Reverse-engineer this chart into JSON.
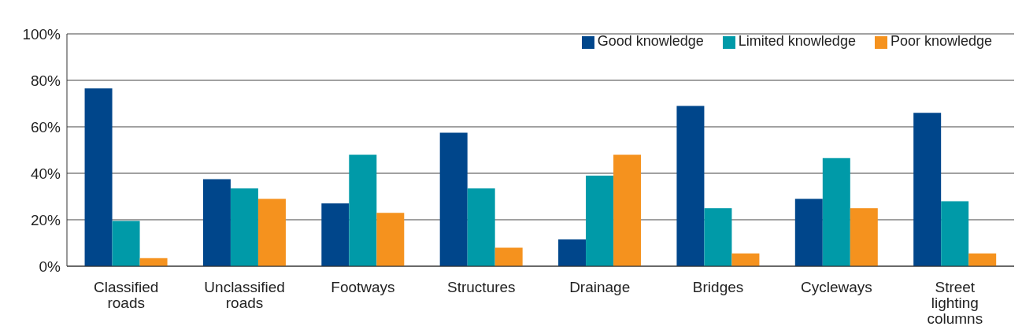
{
  "chart_data": {
    "type": "bar",
    "categories": [
      "Classified roads",
      "Unclassified roads",
      "Footways",
      "Structures",
      "Drainage",
      "Bridges",
      "Cycleways",
      "Street lighting columns"
    ],
    "series": [
      {
        "name": "Good knowledge",
        "color": "#00468b",
        "values": [
          76.5,
          37.5,
          27,
          57.5,
          11.5,
          69,
          29,
          66
        ]
      },
      {
        "name": "Limited knowledge",
        "color": "#009aa8",
        "values": [
          19.5,
          33.5,
          48,
          33.5,
          39,
          25,
          46.5,
          28
        ]
      },
      {
        "name": "Poor knowledge",
        "color": "#f5921e",
        "values": [
          3.5,
          29,
          23,
          8,
          48,
          5.5,
          25,
          5.5
        ]
      }
    ],
    "ylim": [
      0,
      100
    ],
    "yticks": [
      {
        "value": 0,
        "label": "0%"
      },
      {
        "value": 20,
        "label": "20%"
      },
      {
        "value": 40,
        "label": "40%"
      },
      {
        "value": 60,
        "label": "60%"
      },
      {
        "value": 80,
        "label": "80%"
      },
      {
        "value": 100,
        "label": "100%"
      }
    ],
    "grid": "y",
    "legend": "top right"
  }
}
